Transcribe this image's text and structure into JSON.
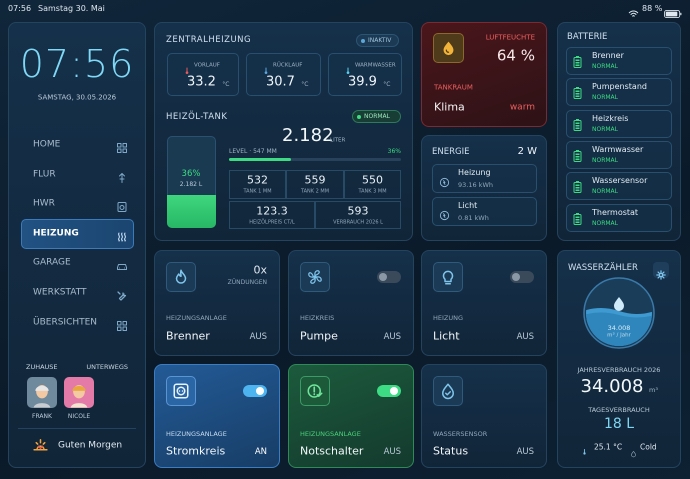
{
  "status_bar": {
    "time": "07:56",
    "date": "Samstag 30. Mai",
    "battery": "88 %"
  },
  "sidebar": {
    "clock": "07:56",
    "date": "SAMSTAG, 30.05.2026",
    "nav": [
      {
        "label": "HOME"
      },
      {
        "label": "FLUR"
      },
      {
        "label": "HWR"
      },
      {
        "label": "HEIZUNG",
        "active": true
      },
      {
        "label": "GARAGE"
      },
      {
        "label": "WERKSTATT"
      },
      {
        "label": "ÜBERSICHTEN"
      }
    ],
    "presence": {
      "home": "ZUHAUSE",
      "away": "UNTERWEGS",
      "people": [
        "FRANK",
        "NICOLE"
      ]
    },
    "scene": "Guten Morgen"
  },
  "heating": {
    "title": "ZENTRALHEIZUNG",
    "status": "INAKTIV",
    "sensors": [
      {
        "label": "VORLAUF",
        "value": "33.2",
        "unit": "°C"
      },
      {
        "label": "RÜCKLAUF",
        "value": "30.7",
        "unit": "°C"
      },
      {
        "label": "WARMWASSER",
        "value": "39.9",
        "unit": "°C"
      }
    ]
  },
  "tank": {
    "title": "HEIZÖL-TANK",
    "status": "NORMAL",
    "level": 36,
    "level_label": "36%",
    "fill_liters": "2.182 L",
    "liters": "2.182",
    "liters_unit": "LITER",
    "level_mm": "LEVEL · 547 MM",
    "stats": [
      {
        "value": "532",
        "label": "TANK 1 MM"
      },
      {
        "value": "559",
        "label": "TANK 2 MM"
      },
      {
        "value": "550",
        "label": "TANK 3 MM"
      },
      {
        "value": "123.3",
        "label": "HEIZÖLPREIS CT/L"
      },
      {
        "value": "593",
        "label": "VERBRAUCH 2026 L"
      }
    ]
  },
  "humidity": {
    "label": "LUFTFEUCHTE",
    "value": "64 %",
    "room": "TANKRAUM",
    "name": "Klima",
    "state": "warm"
  },
  "energy": {
    "title": "ENERGIE",
    "power": "2 W",
    "items": [
      {
        "name": "Heizung",
        "value": "93.16 kWh"
      },
      {
        "name": "Licht",
        "value": "0.81 kWh"
      }
    ]
  },
  "battery": {
    "title": "BATTERIE",
    "items": [
      {
        "name": "Brenner",
        "status": "NORMAL"
      },
      {
        "name": "Pumpenstand",
        "status": "NORMAL"
      },
      {
        "name": "Heizkreis",
        "status": "NORMAL"
      },
      {
        "name": "Warmwasser",
        "status": "NORMAL"
      },
      {
        "name": "Wassersensor",
        "status": "NORMAL"
      },
      {
        "name": "Thermostat",
        "status": "NORMAL"
      }
    ]
  },
  "tiles": [
    {
      "counter": "0x",
      "counter_label": "ZÜNDUNGEN",
      "group": "HEIZUNGSANLAGE",
      "name": "Brenner",
      "state": "AUS",
      "icon": "flame",
      "theme": "default"
    },
    {
      "group": "HEIZKREIS",
      "name": "Pumpe",
      "state": "AUS",
      "toggle": false,
      "icon": "fan",
      "theme": "default"
    },
    {
      "group": "HEIZUNG",
      "name": "Licht",
      "state": "AUS",
      "toggle": false,
      "icon": "bulb",
      "theme": "default"
    },
    {
      "group": "HEIZUNGSANLAGE",
      "name": "Stromkreis",
      "state": "AN",
      "toggle": true,
      "icon": "socket",
      "theme": "blue"
    },
    {
      "group": "HEIZUNGSANLAGE",
      "name": "Notschalter",
      "state": "AUS",
      "toggle": true,
      "icon": "alert",
      "theme": "green"
    },
    {
      "group": "WASSERSENSOR",
      "name": "Status",
      "state": "AUS",
      "icon": "drop",
      "theme": "default"
    }
  ],
  "water": {
    "title": "WASSERZÄHLER",
    "gauge_value": "34.008",
    "gauge_unit": "m³ / Jahr",
    "year_label": "JAHRESVERBRAUCH 2026",
    "year_value": "34.008",
    "year_unit": "m³",
    "day_label": "TAGESVERBRAUCH",
    "day_value": "18 L",
    "temp": "25.1 °C",
    "cold": "Cold"
  }
}
